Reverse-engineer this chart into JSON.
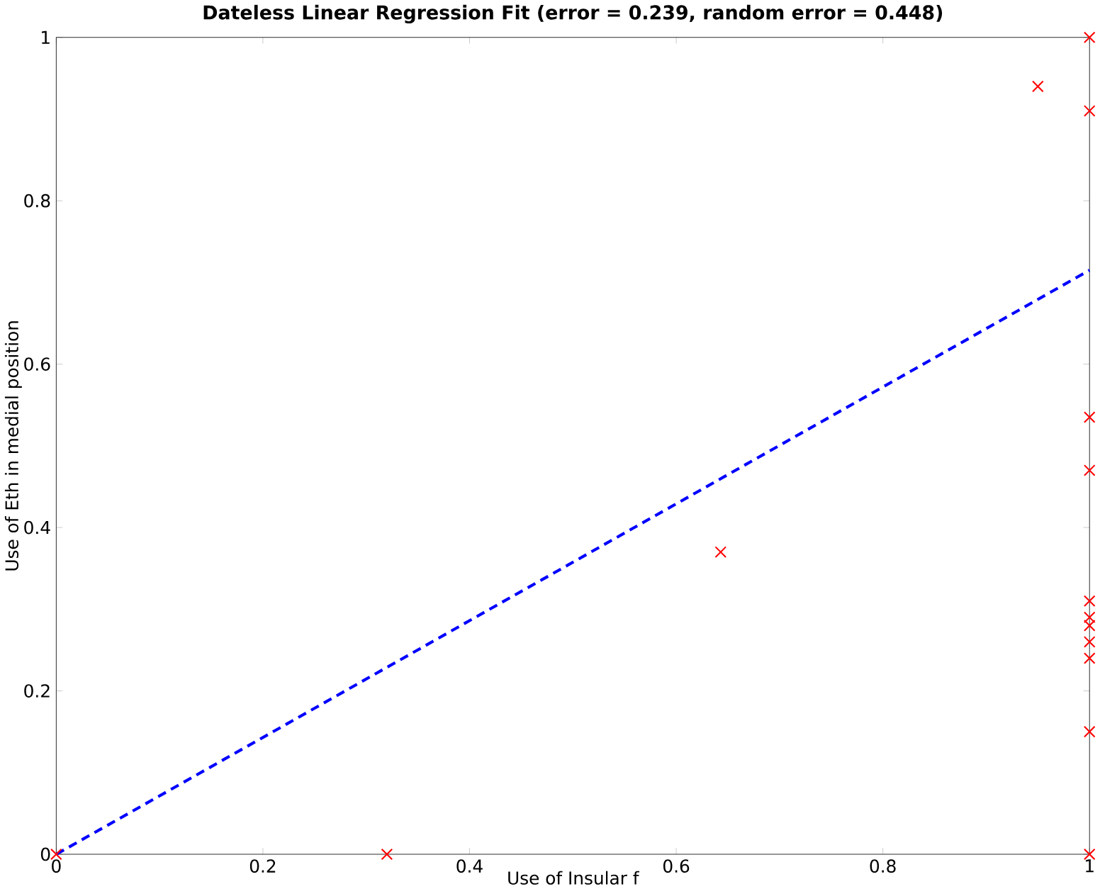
{
  "chart_data": {
    "type": "scatter",
    "title": "Dateless Linear Regression Fit (error = 0.239, random error = 0.448)",
    "xlabel": "Use of Insular f",
    "ylabel": "Use of Eth in medial position",
    "xlim": [
      0,
      1
    ],
    "ylim": [
      0,
      1
    ],
    "xticks": [
      0,
      0.2,
      0.4,
      0.6,
      0.8,
      1
    ],
    "yticks": [
      0,
      0.2,
      0.4,
      0.6,
      0.8,
      1
    ],
    "series": [
      {
        "color": "#ff0000",
        "marker": "cross",
        "x": [
          0,
          0.32,
          0.643,
          0.95,
          1,
          1,
          1,
          1,
          1,
          1,
          1,
          1,
          1,
          1,
          1
        ],
        "values": [
          0,
          0,
          0.37,
          0.94,
          1,
          0.91,
          0.535,
          0.47,
          0.31,
          0.29,
          0.28,
          0.26,
          0.24,
          0.15,
          0
        ]
      },
      {
        "type": "line",
        "color": "#0000ff",
        "line_style": "dashed",
        "marker": "none",
        "x": [
          0,
          1
        ],
        "values": [
          0,
          0.715
        ]
      }
    ]
  }
}
